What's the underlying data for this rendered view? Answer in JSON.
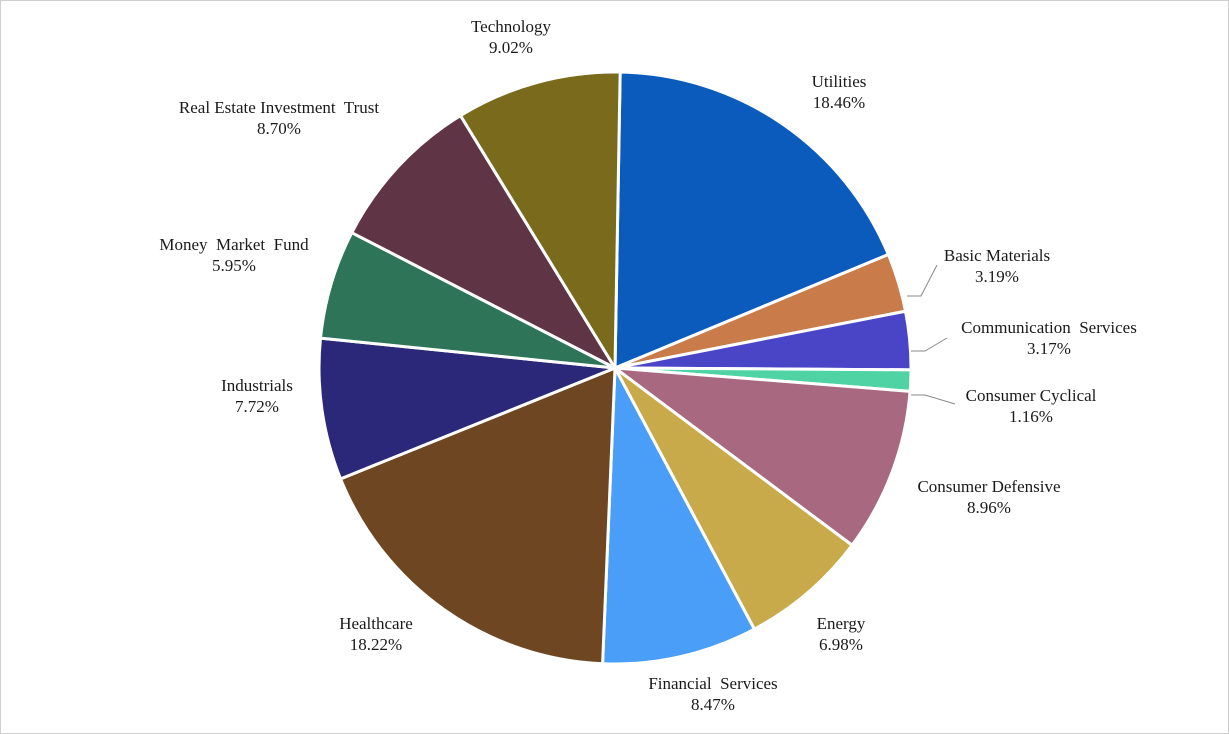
{
  "chart_data": {
    "type": "pie",
    "title": "",
    "start_angle_deg": 1,
    "direction": "clockwise",
    "series": [
      {
        "name": "Utilities",
        "value": 18.46,
        "value_label": "18.46%",
        "color": "#0b5bbd"
      },
      {
        "name": "Basic Materials",
        "value": 3.19,
        "value_label": "3.19%",
        "color": "#c97b49"
      },
      {
        "name": "Communication  Services",
        "value": 3.17,
        "value_label": "3.17%",
        "color": "#4a44c6"
      },
      {
        "name": "Consumer Cyclical",
        "value": 1.16,
        "value_label": "1.16%",
        "color": "#4fd3a4"
      },
      {
        "name": "Consumer Defensive",
        "value": 8.96,
        "value_label": "8.96%",
        "color": "#a8687f"
      },
      {
        "name": "Energy",
        "value": 6.98,
        "value_label": "6.98%",
        "color": "#c8aa4a"
      },
      {
        "name": "Financial  Services",
        "value": 8.47,
        "value_label": "8.47%",
        "color": "#4a9ef8"
      },
      {
        "name": "Healthcare",
        "value": 18.22,
        "value_label": "18.22%",
        "color": "#6e4622"
      },
      {
        "name": "Industrials",
        "value": 7.72,
        "value_label": "7.72%",
        "color": "#2b287a"
      },
      {
        "name": "Money  Market  Fund",
        "value": 5.95,
        "value_label": "5.95%",
        "color": "#2e7458"
      },
      {
        "name": "Real Estate Investment  Trust",
        "value": 8.7,
        "value_label": "8.70%",
        "color": "#5f3445"
      },
      {
        "name": "Technology",
        "value": 9.02,
        "value_label": "9.02%",
        "color": "#7a6a1c"
      }
    ]
  }
}
